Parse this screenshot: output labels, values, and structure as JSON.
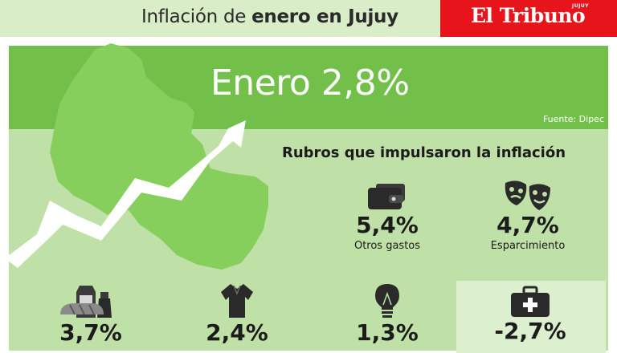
{
  "header": {
    "title_regular": "Inflación de ",
    "title_bold": "enero en Jujuy",
    "brand": "El Tribuno",
    "brand_sub": "JUJUY"
  },
  "banner": {
    "headline": "Enero 2,8%",
    "source": "Fuente: Dipec"
  },
  "section": {
    "subheading": "Rubros que impulsaron la inflación"
  },
  "items": [
    {
      "value": "5,4%",
      "label": "Otros gastos",
      "icon": "wallet-icon"
    },
    {
      "value": "4,7%",
      "label": "Esparcimiento",
      "icon": "theater-masks-icon"
    },
    {
      "value": "3,7%",
      "label": "",
      "icon": "groceries-icon"
    },
    {
      "value": "2,4%",
      "label": "",
      "icon": "shirt-icon"
    },
    {
      "value": "1,3%",
      "label": "",
      "icon": "lightbulb-icon"
    },
    {
      "value": "-2,7%",
      "label": "",
      "icon": "first-aid-kit-icon"
    }
  ],
  "colors": {
    "banner": "#72c04a",
    "panel": "#bfe0a6",
    "header": "#d9edc9",
    "brand": "#e8141c",
    "map": "#86cf5d"
  }
}
